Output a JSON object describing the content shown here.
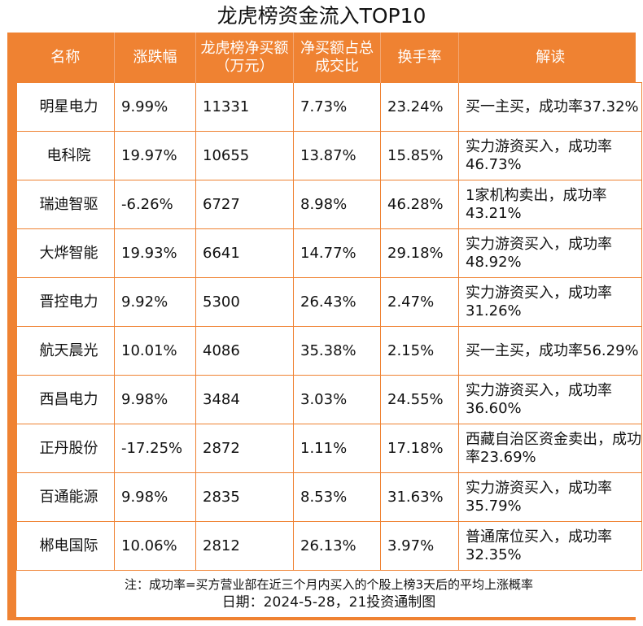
{
  "title": "龙虎榜资金流入TOP10",
  "headers": [
    "名称",
    "涨跌幅",
    "龙虎榜净买额（万元）",
    "净买额占总成交比",
    "换手率",
    "解读"
  ],
  "rows": [
    {
      "name": "明星电力",
      "change": "9.99%",
      "net_buy": "11331",
      "ratio": "7.73%",
      "turnover": "23.24%",
      "note": "买一主买，成功率37.32%"
    },
    {
      "name": "电科院",
      "change": "19.97%",
      "net_buy": "10655",
      "ratio": "13.87%",
      "turnover": "15.85%",
      "note": "实力游资买入，成功率46.73%"
    },
    {
      "name": "瑞迪智驱",
      "change": "-6.26%",
      "net_buy": "6727",
      "ratio": "8.98%",
      "turnover": "46.28%",
      "note": "1家机构卖出，成功率43.21%"
    },
    {
      "name": "大烨智能",
      "change": "19.93%",
      "net_buy": "6641",
      "ratio": "14.77%",
      "turnover": "29.18%",
      "note": "实力游资买入，成功率48.92%"
    },
    {
      "name": "晋控电力",
      "change": "9.92%",
      "net_buy": "5300",
      "ratio": "26.43%",
      "turnover": "2.47%",
      "note": "实力游资买入，成功率31.26%"
    },
    {
      "name": "航天晨光",
      "change": "10.01%",
      "net_buy": "4086",
      "ratio": "35.38%",
      "turnover": "2.15%",
      "note": "买一主买，成功率56.29%"
    },
    {
      "name": "西昌电力",
      "change": "9.98%",
      "net_buy": "3484",
      "ratio": "3.03%",
      "turnover": "24.55%",
      "note": "实力游资买入，成功率36.60%"
    },
    {
      "name": "正丹股份",
      "change": "-17.25%",
      "net_buy": "2872",
      "ratio": "1.11%",
      "turnover": "17.18%",
      "note": "西藏自治区资金卖出，成功率23.69%"
    },
    {
      "name": "百通能源",
      "change": "9.98%",
      "net_buy": "2835",
      "ratio": "8.53%",
      "turnover": "31.63%",
      "note": "实力游资买入，成功率35.79%"
    },
    {
      "name": "郴电国际",
      "change": "10.06%",
      "net_buy": "2812",
      "ratio": "26.13%",
      "turnover": "3.97%",
      "note": "普通席位买入，成功率32.35%"
    }
  ],
  "footnote": "注：成功率=买方营业部在近三个月内买入的个股上榜3天后的平均上涨概率",
  "dateline": "日期：2024-5-28，21投资通制图",
  "colors": {
    "header_bg": "#ef8232",
    "header_text": "#ffffff",
    "cell_bg": "#ffffff"
  }
}
